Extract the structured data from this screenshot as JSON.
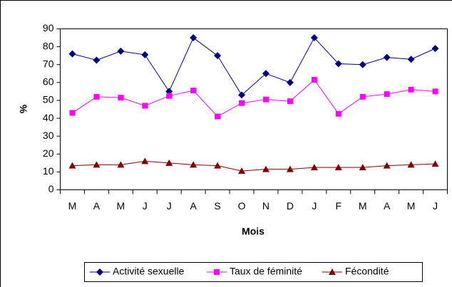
{
  "chart_data": {
    "type": "line",
    "categories": [
      "M",
      "A",
      "M",
      "J",
      "J",
      "A",
      "S",
      "O",
      "N",
      "D",
      "J",
      "F",
      "M",
      "A",
      "M",
      "J"
    ],
    "series": [
      {
        "name": "Activité sexuelle",
        "color": "#000080",
        "marker": "diamond",
        "values": [
          76,
          72.5,
          77.5,
          75.5,
          55,
          85,
          75,
          53,
          65,
          60,
          85,
          70.5,
          70,
          74,
          73,
          79
        ]
      },
      {
        "name": "Taux de féminité",
        "color": "#ff00ff",
        "marker": "square",
        "values": [
          43,
          52,
          51.5,
          47,
          52.5,
          55.5,
          41,
          48.5,
          50.5,
          49.5,
          61.5,
          42.5,
          52,
          53.5,
          56,
          55
        ]
      },
      {
        "name": "Fécondité",
        "color": "#800000",
        "marker": "triangle",
        "values": [
          13.5,
          14,
          14,
          16,
          15,
          14,
          13.5,
          10.5,
          11.5,
          11.5,
          12.5,
          12.5,
          12.5,
          13.5,
          14,
          14.5
        ]
      }
    ],
    "ylabel": "%",
    "xlabel": "Mois",
    "ylim": [
      0,
      90
    ],
    "yticks": [
      0,
      10,
      20,
      30,
      40,
      50,
      60,
      70,
      80,
      90
    ],
    "grid": false,
    "legend": "bottom"
  }
}
